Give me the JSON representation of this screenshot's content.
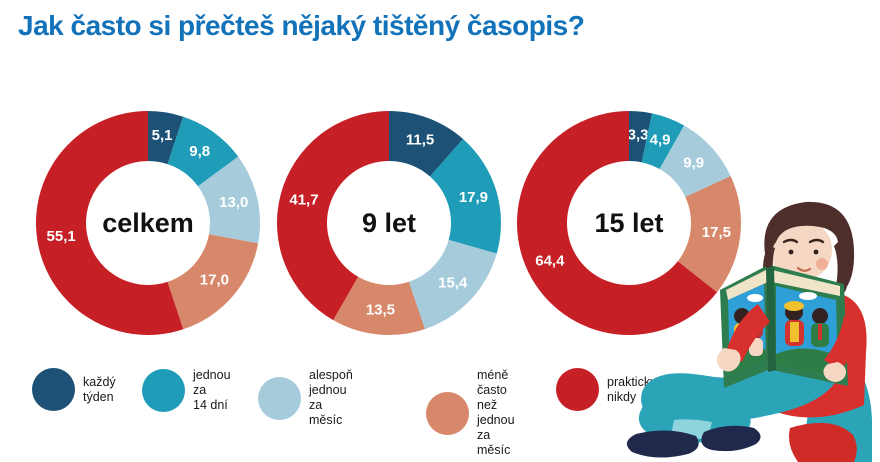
{
  "title": "Jak často si přečteš nějaký tištěný časopis?",
  "colors": {
    "title": "#1272ba",
    "segment_colors": [
      "#1d5276",
      "#1f9db8",
      "#a6cbdb",
      "#d8886a",
      "#c62026"
    ],
    "center_label": "#111111",
    "slice_label": "#ffffff"
  },
  "chart_data": [
    {
      "type": "pie",
      "subtype": "donut",
      "center_label": "celkem",
      "categories": [
        "každý týden",
        "jednou za 14 dní",
        "alespoň jednou za měsíc",
        "méně často než jednou za měsíc",
        "prakticky nikdy"
      ],
      "values": [
        5.1,
        9.8,
        13.0,
        17.0,
        55.1
      ],
      "labels": [
        "5,1",
        "9,8",
        "13,0",
        "17,0",
        "55,1"
      ],
      "start_angle_deg": 0,
      "direction": "clockwise"
    },
    {
      "type": "pie",
      "subtype": "donut",
      "center_label": "9 let",
      "categories": [
        "každý týden",
        "jednou za 14 dní",
        "alespoň jednou za měsíc",
        "méně často než jednou za měsíc",
        "prakticky nikdy"
      ],
      "values": [
        11.5,
        17.9,
        15.4,
        13.5,
        41.7
      ],
      "labels": [
        "11,5",
        "17,9",
        "15,4",
        "13,5",
        "41,7"
      ],
      "start_angle_deg": 0,
      "direction": "clockwise"
    },
    {
      "type": "pie",
      "subtype": "donut",
      "center_label": "15 let",
      "categories": [
        "každý týden",
        "jednou za 14 dní",
        "alespoň jednou za měsíc",
        "méně často než jednou za měsíc",
        "prakticky nikdy"
      ],
      "values": [
        3.3,
        4.9,
        9.9,
        17.5,
        64.4
      ],
      "labels": [
        "3,3",
        "4,9",
        "9,9",
        "17,5",
        "64,4"
      ],
      "start_angle_deg": 0,
      "direction": "clockwise"
    }
  ],
  "legend": {
    "position": "bottom",
    "items": [
      {
        "color": "#1d5276",
        "lines": [
          "každý",
          "týden"
        ],
        "label": "každý týden"
      },
      {
        "color": "#1f9db8",
        "lines": [
          "jednou za",
          "14 dní"
        ],
        "label": "jednou za 14 dní"
      },
      {
        "color": "#a6cbdb",
        "lines": [
          "alespoň jednou",
          "za měsíc"
        ],
        "label": "alespoň jednou za měsíc"
      },
      {
        "color": "#d8886a",
        "lines": [
          "méně často",
          "než jednou",
          "za měsíc"
        ],
        "label": "méně často než jednou za měsíc"
      },
      {
        "color": "#c62026",
        "lines": [
          "prakticky",
          "nikdy"
        ],
        "label": "prakticky nikdy"
      }
    ]
  },
  "illustration": {
    "description": "person-reading-magazine"
  }
}
